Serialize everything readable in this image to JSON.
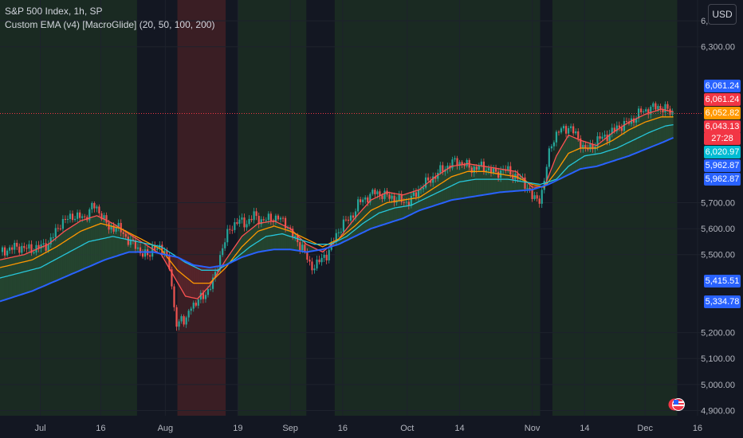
{
  "legend": {
    "symbol": "S&P 500 Index, 1h, SP",
    "indicator": "Custom EMA (v4) [MacroGlide] (20, 50, 100, 200)"
  },
  "currency": "USD",
  "colors": {
    "background": "#131722",
    "bull_zone": "#1a2a22",
    "bear_zone": "#3a1e24",
    "grid": "#1e222d",
    "ema20": "#ff5252",
    "ema50": "#ff9800",
    "ema100": "#26c6da",
    "ema200": "#2962ff",
    "candle_up": "#26a69a",
    "candle_down": "#ef5350",
    "cloud_bull": "#2e5a3a",
    "cloud_bear": "#6b2a2f"
  },
  "price_tags": [
    {
      "label": "6,061.24",
      "color": "#2962ff"
    },
    {
      "label": "6,061.24",
      "color": "#f23645"
    },
    {
      "label": "6,052.82",
      "color": "#ff9800"
    },
    {
      "label": "6,043.13",
      "color": "#f23645"
    },
    {
      "label": "27:28",
      "color": "#f23645"
    },
    {
      "label": "6,020.97",
      "color": "#00bcd4"
    },
    {
      "label": "5,962.87",
      "color": "#2962ff"
    },
    {
      "label": "5,962.87",
      "color": "#2962ff"
    },
    {
      "label": "5,415.51",
      "color": "#2962ff"
    },
    {
      "label": "5,334.78",
      "color": "#2962ff"
    }
  ],
  "chart_data": {
    "type": "line",
    "title": "S&P 500 Index, 1h, SP",
    "ylim": [
      4880,
      6480
    ],
    "xlim_days": "Jul 1 – Dec 16",
    "y_ticks": [
      {
        "value": 6400,
        "label": "6,400.00"
      },
      {
        "value": 6300,
        "label": "6,300.00"
      },
      {
        "value": 5700,
        "label": "5,700.00"
      },
      {
        "value": 5600,
        "label": "5,600.00"
      },
      {
        "value": 5500,
        "label": "5,500.00"
      },
      {
        "value": 5200,
        "label": "5,200.00"
      },
      {
        "value": 5100,
        "label": "5,100.00"
      },
      {
        "value": 5000,
        "label": "5,000.00"
      },
      {
        "value": 4900,
        "label": "4,900.00"
      }
    ],
    "x_ticks": [
      {
        "day": 10,
        "label": "Jul"
      },
      {
        "day": 25,
        "label": "16"
      },
      {
        "day": 41,
        "label": "Aug"
      },
      {
        "day": 59,
        "label": "19"
      },
      {
        "day": 72,
        "label": "Sep"
      },
      {
        "day": 85,
        "label": "16"
      },
      {
        "day": 101,
        "label": "Oct"
      },
      {
        "day": 114,
        "label": "14"
      },
      {
        "day": 132,
        "label": "Nov"
      },
      {
        "day": 145,
        "label": "14"
      },
      {
        "day": 160,
        "label": "Dec"
      },
      {
        "day": 173,
        "label": "16"
      }
    ],
    "last_price": 6043.13,
    "zones": [
      {
        "from": 0,
        "to": 34,
        "kind": "bull"
      },
      {
        "from": 34,
        "to": 44,
        "kind": "neutral"
      },
      {
        "from": 44,
        "to": 56,
        "kind": "bear"
      },
      {
        "from": 56,
        "to": 59,
        "kind": "neutral"
      },
      {
        "from": 59,
        "to": 76,
        "kind": "bull"
      },
      {
        "from": 76,
        "to": 83,
        "kind": "neutral"
      },
      {
        "from": 83,
        "to": 134,
        "kind": "bull"
      },
      {
        "from": 134,
        "to": 137,
        "kind": "neutral"
      },
      {
        "from": 137,
        "to": 168,
        "kind": "bull"
      },
      {
        "from": 168,
        "to": 173,
        "kind": "neutral"
      }
    ],
    "series": [
      {
        "name": "Price",
        "key": "price",
        "points": [
          [
            0,
            5510
          ],
          [
            4,
            5530
          ],
          [
            8,
            5520
          ],
          [
            12,
            5540
          ],
          [
            15,
            5620
          ],
          [
            18,
            5650
          ],
          [
            21,
            5640
          ],
          [
            23,
            5690
          ],
          [
            25,
            5660
          ],
          [
            27,
            5600
          ],
          [
            29,
            5610
          ],
          [
            31,
            5570
          ],
          [
            33,
            5540
          ],
          [
            35,
            5510
          ],
          [
            37,
            5490
          ],
          [
            38,
            5540
          ],
          [
            40,
            5510
          ],
          [
            41,
            5520
          ],
          [
            42,
            5460
          ],
          [
            43,
            5300
          ],
          [
            44,
            5220
          ],
          [
            45,
            5270
          ],
          [
            46,
            5220
          ],
          [
            47,
            5300
          ],
          [
            49,
            5320
          ],
          [
            51,
            5350
          ],
          [
            53,
            5400
          ],
          [
            55,
            5520
          ],
          [
            57,
            5600
          ],
          [
            59,
            5630
          ],
          [
            61,
            5620
          ],
          [
            63,
            5650
          ],
          [
            65,
            5630
          ],
          [
            67,
            5640
          ],
          [
            69,
            5640
          ],
          [
            71,
            5620
          ],
          [
            73,
            5560
          ],
          [
            75,
            5530
          ],
          [
            77,
            5450
          ],
          [
            79,
            5470
          ],
          [
            81,
            5500
          ],
          [
            83,
            5560
          ],
          [
            85,
            5620
          ],
          [
            87,
            5640
          ],
          [
            89,
            5700
          ],
          [
            91,
            5720
          ],
          [
            93,
            5740
          ],
          [
            95,
            5730
          ],
          [
            97,
            5720
          ],
          [
            99,
            5710
          ],
          [
            101,
            5700
          ],
          [
            103,
            5730
          ],
          [
            105,
            5770
          ],
          [
            107,
            5790
          ],
          [
            109,
            5820
          ],
          [
            111,
            5840
          ],
          [
            113,
            5860
          ],
          [
            115,
            5850
          ],
          [
            117,
            5830
          ],
          [
            119,
            5840
          ],
          [
            121,
            5830
          ],
          [
            123,
            5810
          ],
          [
            125,
            5830
          ],
          [
            127,
            5810
          ],
          [
            129,
            5790
          ],
          [
            131,
            5760
          ],
          [
            132,
            5720
          ],
          [
            133,
            5710
          ],
          [
            134,
            5720
          ],
          [
            135,
            5780
          ],
          [
            136,
            5880
          ],
          [
            137,
            5940
          ],
          [
            139,
            5980
          ],
          [
            141,
            5990
          ],
          [
            143,
            5960
          ],
          [
            145,
            5900
          ],
          [
            147,
            5920
          ],
          [
            149,
            5950
          ],
          [
            151,
            5960
          ],
          [
            153,
            5990
          ],
          [
            155,
            6000
          ],
          [
            157,
            6020
          ],
          [
            159,
            6050
          ],
          [
            161,
            6060
          ],
          [
            163,
            6070
          ],
          [
            165,
            6060
          ],
          [
            167,
            6043
          ]
        ]
      },
      {
        "name": "EMA 20",
        "key": "ema20",
        "points": [
          [
            0,
            5480
          ],
          [
            6,
            5500
          ],
          [
            12,
            5540
          ],
          [
            16,
            5590
          ],
          [
            20,
            5630
          ],
          [
            24,
            5650
          ],
          [
            28,
            5620
          ],
          [
            32,
            5580
          ],
          [
            36,
            5540
          ],
          [
            40,
            5500
          ],
          [
            43,
            5420
          ],
          [
            46,
            5340
          ],
          [
            49,
            5330
          ],
          [
            52,
            5380
          ],
          [
            56,
            5480
          ],
          [
            60,
            5570
          ],
          [
            64,
            5620
          ],
          [
            68,
            5630
          ],
          [
            72,
            5600
          ],
          [
            76,
            5540
          ],
          [
            80,
            5510
          ],
          [
            84,
            5560
          ],
          [
            88,
            5640
          ],
          [
            92,
            5710
          ],
          [
            96,
            5740
          ],
          [
            100,
            5730
          ],
          [
            104,
            5750
          ],
          [
            108,
            5800
          ],
          [
            112,
            5840
          ],
          [
            116,
            5850
          ],
          [
            120,
            5840
          ],
          [
            124,
            5830
          ],
          [
            128,
            5820
          ],
          [
            132,
            5760
          ],
          [
            135,
            5760
          ],
          [
            138,
            5880
          ],
          [
            141,
            5960
          ],
          [
            144,
            5940
          ],
          [
            148,
            5920
          ],
          [
            152,
            5970
          ],
          [
            156,
            6010
          ],
          [
            160,
            6040
          ],
          [
            164,
            6060
          ],
          [
            167,
            6050
          ]
        ]
      },
      {
        "name": "EMA 50",
        "key": "ema50",
        "points": [
          [
            0,
            5450
          ],
          [
            8,
            5480
          ],
          [
            14,
            5530
          ],
          [
            20,
            5590
          ],
          [
            25,
            5620
          ],
          [
            30,
            5600
          ],
          [
            35,
            5560
          ],
          [
            40,
            5520
          ],
          [
            44,
            5440
          ],
          [
            48,
            5390
          ],
          [
            52,
            5390
          ],
          [
            56,
            5450
          ],
          [
            60,
            5530
          ],
          [
            64,
            5590
          ],
          [
            68,
            5610
          ],
          [
            72,
            5590
          ],
          [
            76,
            5560
          ],
          [
            80,
            5530
          ],
          [
            84,
            5560
          ],
          [
            88,
            5610
          ],
          [
            92,
            5670
          ],
          [
            96,
            5700
          ],
          [
            100,
            5710
          ],
          [
            104,
            5720
          ],
          [
            108,
            5760
          ],
          [
            112,
            5800
          ],
          [
            116,
            5820
          ],
          [
            120,
            5820
          ],
          [
            124,
            5810
          ],
          [
            128,
            5800
          ],
          [
            132,
            5770
          ],
          [
            135,
            5760
          ],
          [
            138,
            5820
          ],
          [
            141,
            5890
          ],
          [
            144,
            5910
          ],
          [
            148,
            5910
          ],
          [
            152,
            5940
          ],
          [
            156,
            5980
          ],
          [
            160,
            6010
          ],
          [
            164,
            6030
          ],
          [
            167,
            6030
          ]
        ]
      },
      {
        "name": "EMA 100",
        "key": "ema100",
        "points": [
          [
            0,
            5410
          ],
          [
            10,
            5450
          ],
          [
            16,
            5500
          ],
          [
            22,
            5550
          ],
          [
            28,
            5570
          ],
          [
            34,
            5550
          ],
          [
            40,
            5530
          ],
          [
            46,
            5470
          ],
          [
            50,
            5440
          ],
          [
            54,
            5440
          ],
          [
            58,
            5480
          ],
          [
            62,
            5530
          ],
          [
            66,
            5570
          ],
          [
            70,
            5580
          ],
          [
            74,
            5560
          ],
          [
            78,
            5540
          ],
          [
            82,
            5540
          ],
          [
            86,
            5570
          ],
          [
            90,
            5620
          ],
          [
            94,
            5660
          ],
          [
            98,
            5680
          ],
          [
            102,
            5690
          ],
          [
            106,
            5720
          ],
          [
            110,
            5750
          ],
          [
            114,
            5780
          ],
          [
            118,
            5790
          ],
          [
            122,
            5790
          ],
          [
            126,
            5790
          ],
          [
            130,
            5780
          ],
          [
            134,
            5770
          ],
          [
            138,
            5790
          ],
          [
            141,
            5840
          ],
          [
            145,
            5880
          ],
          [
            149,
            5890
          ],
          [
            153,
            5910
          ],
          [
            157,
            5940
          ],
          [
            161,
            5970
          ],
          [
            165,
            5995
          ],
          [
            167,
            6000
          ]
        ]
      },
      {
        "name": "EMA 200",
        "key": "ema200",
        "points": [
          [
            0,
            5320
          ],
          [
            8,
            5360
          ],
          [
            14,
            5400
          ],
          [
            20,
            5440
          ],
          [
            26,
            5480
          ],
          [
            32,
            5510
          ],
          [
            38,
            5510
          ],
          [
            44,
            5490
          ],
          [
            48,
            5460
          ],
          [
            52,
            5450
          ],
          [
            56,
            5460
          ],
          [
            60,
            5490
          ],
          [
            64,
            5510
          ],
          [
            68,
            5520
          ],
          [
            72,
            5520
          ],
          [
            76,
            5510
          ],
          [
            80,
            5520
          ],
          [
            84,
            5540
          ],
          [
            88,
            5570
          ],
          [
            92,
            5600
          ],
          [
            96,
            5620
          ],
          [
            100,
            5640
          ],
          [
            104,
            5670
          ],
          [
            108,
            5690
          ],
          [
            112,
            5710
          ],
          [
            116,
            5720
          ],
          [
            120,
            5730
          ],
          [
            124,
            5740
          ],
          [
            128,
            5745
          ],
          [
            132,
            5750
          ],
          [
            136,
            5770
          ],
          [
            140,
            5800
          ],
          [
            144,
            5830
          ],
          [
            148,
            5840
          ],
          [
            152,
            5860
          ],
          [
            156,
            5880
          ],
          [
            160,
            5905
          ],
          [
            164,
            5930
          ],
          [
            167,
            5950
          ]
        ]
      }
    ]
  }
}
